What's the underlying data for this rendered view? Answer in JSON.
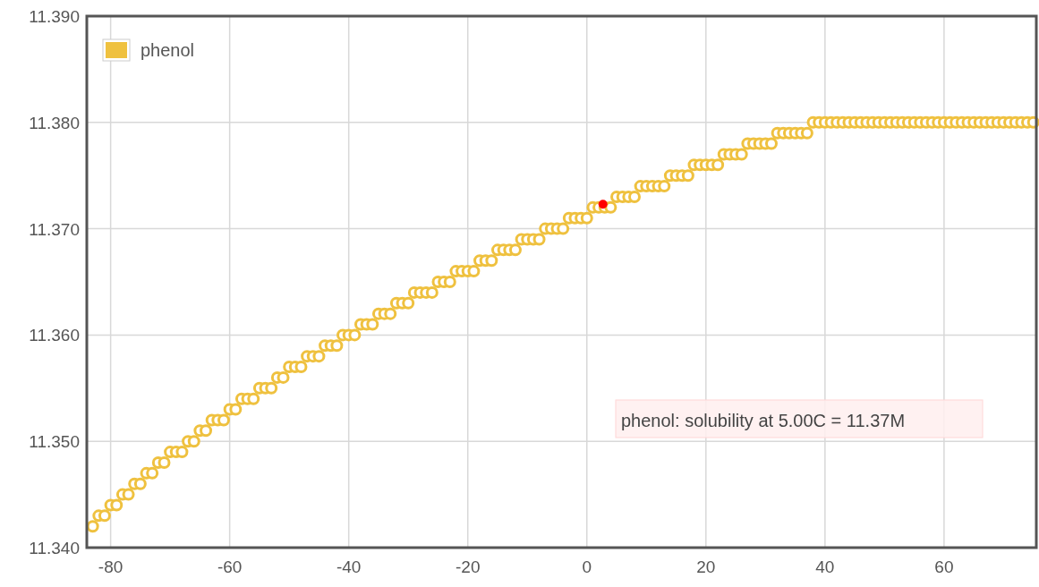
{
  "chart_data": {
    "type": "scatter",
    "xlim": [
      -84,
      75.5
    ],
    "xticks": [
      -80,
      -60,
      -40,
      -20,
      0,
      20,
      40,
      60
    ],
    "ylim": [
      11.34,
      11.39
    ],
    "yticks": [
      {
        "value": 11.34,
        "label": "11.340"
      },
      {
        "value": 11.35,
        "label": "11.350"
      },
      {
        "value": 11.36,
        "label": "11.360"
      },
      {
        "value": 11.37,
        "label": "11.370"
      },
      {
        "value": 11.38,
        "label": "11.380"
      },
      {
        "value": 11.39,
        "label": "11.390"
      }
    ],
    "grid": true,
    "legend": "top left",
    "marker": "circle",
    "annotations": [
      "phenol: solubility at 5.00C = 11.37M"
    ],
    "series": [
      {
        "name": "phenol",
        "color": "#efc13f",
        "x": [
          -83,
          -82,
          -81,
          -80,
          -79,
          -78,
          -77,
          -76,
          -75,
          -74,
          -73,
          -72,
          -71,
          -70,
          -69,
          -68,
          -67,
          -66,
          -65,
          -64,
          -63,
          -62,
          -61,
          -60,
          -59,
          -58,
          -57,
          -56,
          -55,
          -54,
          -53,
          -52,
          -51,
          -50,
          -49,
          -48,
          -47,
          -46,
          -45,
          -44,
          -43,
          -42,
          -41,
          -40,
          -39,
          -38,
          -37,
          -36,
          -35,
          -34,
          -33,
          -32,
          -31,
          -30,
          -29,
          -28,
          -27,
          -26,
          -25,
          -24,
          -23,
          -22,
          -21,
          -20,
          -19,
          -18,
          -17,
          -16,
          -15,
          -14,
          -13,
          -12,
          -11,
          -10,
          -9,
          -8,
          -7,
          -6,
          -5,
          -4,
          -3,
          -2,
          -1,
          0,
          1,
          2,
          3,
          4,
          5,
          6,
          7,
          8,
          9,
          10,
          11,
          12,
          13,
          14,
          15,
          16,
          17,
          18,
          19,
          20,
          21,
          22,
          23,
          24,
          25,
          26,
          27,
          28,
          29,
          30,
          31,
          32,
          33,
          34,
          35,
          36,
          37,
          38,
          39,
          40,
          41,
          42,
          43,
          44,
          45,
          46,
          47,
          48,
          49,
          50,
          51,
          52,
          53,
          54,
          55,
          56,
          57,
          58,
          59,
          60,
          61,
          62,
          63,
          64,
          65,
          66,
          67,
          68,
          69,
          70,
          71,
          72,
          73,
          74,
          75
        ],
        "values": [
          11.342,
          11.343,
          11.343,
          11.344,
          11.344,
          11.345,
          11.345,
          11.346,
          11.346,
          11.347,
          11.347,
          11.348,
          11.348,
          11.349,
          11.349,
          11.349,
          11.35,
          11.35,
          11.351,
          11.351,
          11.352,
          11.352,
          11.352,
          11.353,
          11.353,
          11.354,
          11.354,
          11.354,
          11.355,
          11.355,
          11.355,
          11.356,
          11.356,
          11.357,
          11.357,
          11.357,
          11.358,
          11.358,
          11.358,
          11.359,
          11.359,
          11.359,
          11.36,
          11.36,
          11.36,
          11.361,
          11.361,
          11.361,
          11.362,
          11.362,
          11.362,
          11.363,
          11.363,
          11.363,
          11.364,
          11.364,
          11.364,
          11.364,
          11.365,
          11.365,
          11.365,
          11.366,
          11.366,
          11.366,
          11.366,
          11.367,
          11.367,
          11.367,
          11.368,
          11.368,
          11.368,
          11.368,
          11.369,
          11.369,
          11.369,
          11.369,
          11.37,
          11.37,
          11.37,
          11.37,
          11.371,
          11.371,
          11.371,
          11.371,
          11.372,
          11.372,
          11.372,
          11.372,
          11.373,
          11.373,
          11.373,
          11.373,
          11.374,
          11.374,
          11.374,
          11.374,
          11.374,
          11.375,
          11.375,
          11.375,
          11.375,
          11.376,
          11.376,
          11.376,
          11.376,
          11.376,
          11.377,
          11.377,
          11.377,
          11.377,
          11.378,
          11.378,
          11.378,
          11.378,
          11.378,
          11.379,
          11.379,
          11.379,
          11.379,
          11.379,
          11.379,
          11.38,
          11.38,
          11.38,
          11.38,
          11.38,
          11.38,
          11.38,
          11.38,
          11.38,
          11.38,
          11.38,
          11.38,
          11.38,
          11.38,
          11.38,
          11.38,
          11.38,
          11.38,
          11.38,
          11.38,
          11.38,
          11.38,
          11.38,
          11.38,
          11.38,
          11.38,
          11.38,
          11.38,
          11.38,
          11.38,
          11.38,
          11.38,
          11.38,
          11.38,
          11.38,
          11.38,
          11.38,
          11.38
        ]
      },
      {
        "color": "#ff0000",
        "marker": "circle",
        "x": [
          2.7
        ],
        "values": [
          11.3723
        ]
      }
    ]
  }
}
